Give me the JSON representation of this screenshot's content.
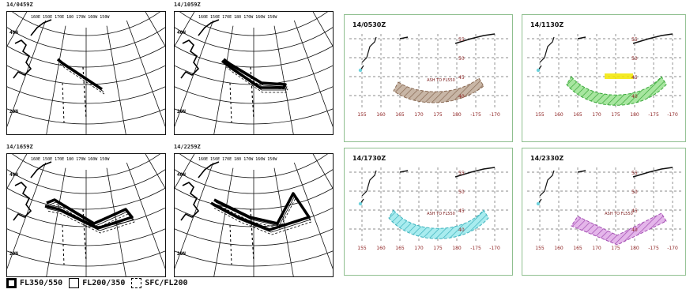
{
  "left_maps": [
    {
      "label": "14/0459Z",
      "lat_labels": [
        "40N",
        "20N"
      ],
      "route": "r1"
    },
    {
      "label": "14/1059Z",
      "lat_labels": [
        "40N",
        "20N"
      ],
      "route": "r2"
    },
    {
      "label": "14/1659Z",
      "lat_labels": [
        "40N",
        "20N"
      ],
      "route": "r3"
    },
    {
      "label": "14/2259Z",
      "lat_labels": [
        "40N",
        "20N"
      ],
      "route": "r4"
    }
  ],
  "top_lon_labels": "160E 150E 170E 180 170W 160W 150W",
  "legend": [
    {
      "label": "FL350/550",
      "swatch": "thick"
    },
    {
      "label": "FL200/350",
      "swatch": "thin"
    },
    {
      "label": "SFC/FL200",
      "swatch": "dash"
    }
  ],
  "forecasts": [
    {
      "title": "14/0530Z",
      "fill": "#c8b6a6",
      "stroke": "#8a6b55",
      "ash_label": "ASH TO FL550",
      "shape": "a"
    },
    {
      "title": "14/1130Z",
      "fill": "#a8e6a0",
      "stroke": "#3aa83a",
      "ash_label": "",
      "shape": "b"
    },
    {
      "title": "14/1730Z",
      "fill": "#a9ecef",
      "stroke": "#3fb3bd",
      "ash_label": "ASH TO FL550",
      "shape": "b"
    },
    {
      "title": "14/2330Z",
      "fill": "#e4b6ea",
      "stroke": "#a44fb3",
      "ash_label": "ASH TO FL550",
      "shape": "c"
    }
  ],
  "lat_ticks": [
    "55",
    "50",
    "45",
    "40"
  ],
  "lon_ticks": [
    "155",
    "160",
    "165",
    "170",
    "175",
    "180",
    "-175",
    "-170"
  ],
  "colors": {
    "grid": "#666666",
    "tick_text": "#8a1c1c",
    "frame": "#8fbf8f",
    "yellow": "#f2e600"
  }
}
